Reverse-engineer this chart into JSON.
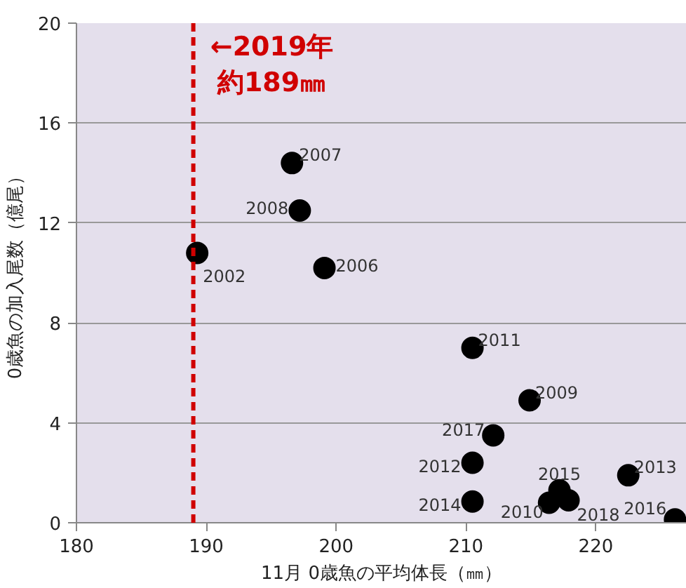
{
  "chart_data": {
    "type": "scatter",
    "xlabel": "11月 0歳魚の平均体長（㎜）",
    "ylabel": "0歳魚の加入尾数（億尾）",
    "x": [
      189.3,
      199.1,
      196.6,
      197.2,
      214.9,
      216.4,
      210.5,
      210.5,
      222.5,
      210.5,
      217.2,
      226.1,
      212.1,
      217.9
    ],
    "series": [
      {
        "color": "#000000",
        "values": [
          10.8,
          10.2,
          14.4,
          12.5,
          4.9,
          0.8,
          7.0,
          2.4,
          1.9,
          0.85,
          1.3,
          0.13,
          3.5,
          0.9
        ]
      }
    ],
    "annotations": [
      {
        "text": "2002",
        "x": 189.3,
        "y": 10.8
      },
      {
        "text": "2006",
        "x": 199.1,
        "y": 10.2
      },
      {
        "text": "2007",
        "x": 196.6,
        "y": 14.4
      },
      {
        "text": "2008",
        "x": 197.2,
        "y": 12.5
      },
      {
        "text": "2009",
        "x": 214.9,
        "y": 4.9
      },
      {
        "text": "2010",
        "x": 216.4,
        "y": 0.8
      },
      {
        "text": "2011",
        "x": 210.5,
        "y": 7.0
      },
      {
        "text": "2012",
        "x": 210.5,
        "y": 2.4
      },
      {
        "text": "2013",
        "x": 222.5,
        "y": 1.9
      },
      {
        "text": "2014",
        "x": 210.5,
        "y": 0.85
      },
      {
        "text": "2015",
        "x": 217.2,
        "y": 1.3
      },
      {
        "text": "2016",
        "x": 226.1,
        "y": 0.13
      },
      {
        "text": "2017",
        "x": 212.1,
        "y": 3.5
      },
      {
        "text": "2018",
        "x": 217.9,
        "y": 0.9
      }
    ],
    "ref_lines": [
      {
        "axis": "x",
        "value": 189,
        "label": "←2019年約189㎜",
        "color": "#d00000",
        "line_style": "dashed"
      }
    ],
    "xlim": [
      180,
      227
    ],
    "ylim": [
      0,
      20
    ],
    "xticks": [
      180,
      190,
      200,
      210,
      220
    ],
    "yticks": [
      0,
      4,
      8,
      12,
      16,
      20
    ],
    "grid": "y",
    "marker": "circle"
  }
}
